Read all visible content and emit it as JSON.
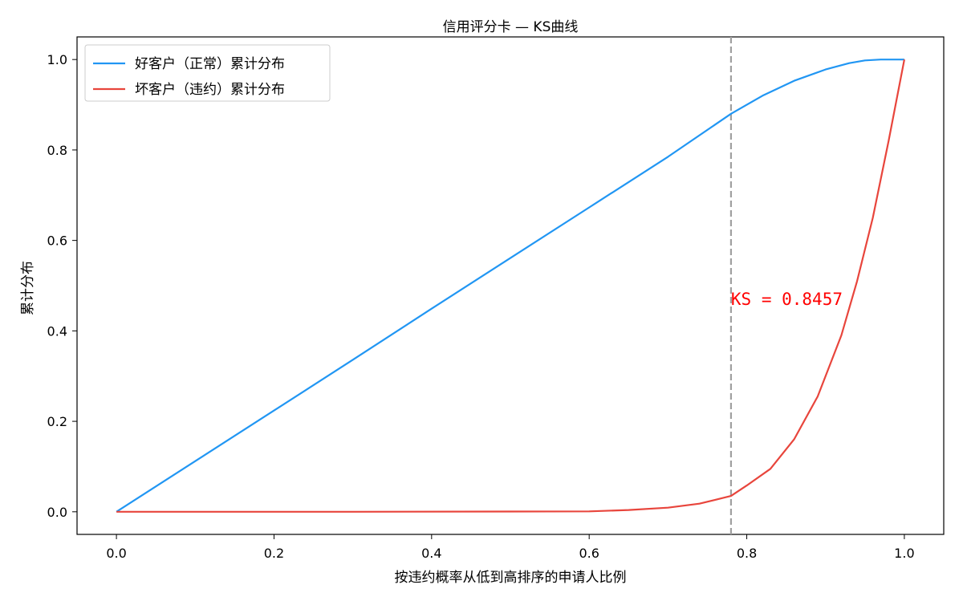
{
  "chart_data": {
    "type": "line",
    "title": "信用评分卡 — KS曲线",
    "xlabel": "按违约概率从低到高排序的申请人比例",
    "ylabel": "累计分布",
    "xlim": [
      -0.05,
      1.05
    ],
    "ylim": [
      -0.05,
      1.05
    ],
    "xticks": [
      0.0,
      0.2,
      0.4,
      0.6,
      0.8,
      1.0
    ],
    "xtick_labels": [
      "0.0",
      "0.2",
      "0.4",
      "0.6",
      "0.8",
      "1.0"
    ],
    "yticks": [
      0.0,
      0.2,
      0.4,
      0.6,
      0.8,
      1.0
    ],
    "ytick_labels": [
      "0.0",
      "0.2",
      "0.4",
      "0.6",
      "0.8",
      "1.0"
    ],
    "grid": false,
    "legend_position": "top-left",
    "series": [
      {
        "name": "好客户（正常）累计分布",
        "color": "#2196F3",
        "x": [
          0.0,
          0.1,
          0.2,
          0.3,
          0.4,
          0.5,
          0.6,
          0.7,
          0.78,
          0.82,
          0.86,
          0.9,
          0.93,
          0.95,
          0.97,
          1.0
        ],
        "y": [
          0.0,
          0.112,
          0.224,
          0.336,
          0.449,
          0.561,
          0.673,
          0.785,
          0.88,
          0.92,
          0.953,
          0.978,
          0.992,
          0.998,
          1.0,
          1.0
        ]
      },
      {
        "name": "坏客户（违约）累计分布",
        "color": "#E8453C",
        "x": [
          0.0,
          0.3,
          0.5,
          0.6,
          0.65,
          0.7,
          0.74,
          0.78,
          0.8,
          0.83,
          0.86,
          0.89,
          0.92,
          0.94,
          0.96,
          0.98,
          1.0
        ],
        "y": [
          0.0,
          0.0,
          0.0005,
          0.001,
          0.004,
          0.009,
          0.018,
          0.035,
          0.058,
          0.095,
          0.16,
          0.255,
          0.39,
          0.51,
          0.65,
          0.82,
          1.0
        ]
      }
    ],
    "ks_line": {
      "x": 0.78,
      "color": "#A0A0A0"
    },
    "annotation": {
      "text": "KS = 0.8457",
      "x": 0.78,
      "y": 0.47,
      "color": "#FF0000"
    }
  }
}
